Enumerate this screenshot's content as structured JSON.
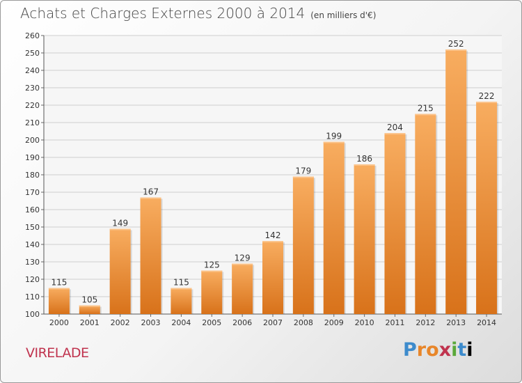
{
  "header": {
    "title": "Achats et Charges Externes 2000 à 2014",
    "unit_note": "(en milliers d'€)"
  },
  "commune": "VIRELADE",
  "logo_text": "Proxiti",
  "colors": {
    "bar_light": "#f7a85a",
    "bar_dark": "#d9761a",
    "grid": "#cfcfcf",
    "axis_text": "#333333",
    "commune": "#c0334e"
  },
  "chart_data": {
    "type": "bar",
    "title": "Achats et Charges Externes 2000 à 2014",
    "subtitle": "(en milliers d'€)",
    "xlabel": "",
    "ylabel": "",
    "categories": [
      "2000",
      "2001",
      "2002",
      "2003",
      "2004",
      "2005",
      "2006",
      "2007",
      "2008",
      "2009",
      "2010",
      "2011",
      "2012",
      "2013",
      "2014"
    ],
    "values": [
      115,
      105,
      149,
      167,
      115,
      125,
      129,
      142,
      179,
      199,
      186,
      204,
      215,
      252,
      222
    ],
    "ylim": [
      100,
      260
    ],
    "yticks": [
      100,
      110,
      120,
      130,
      140,
      150,
      160,
      170,
      180,
      190,
      200,
      210,
      220,
      230,
      240,
      250,
      260
    ],
    "grid": true,
    "legend": "none"
  }
}
